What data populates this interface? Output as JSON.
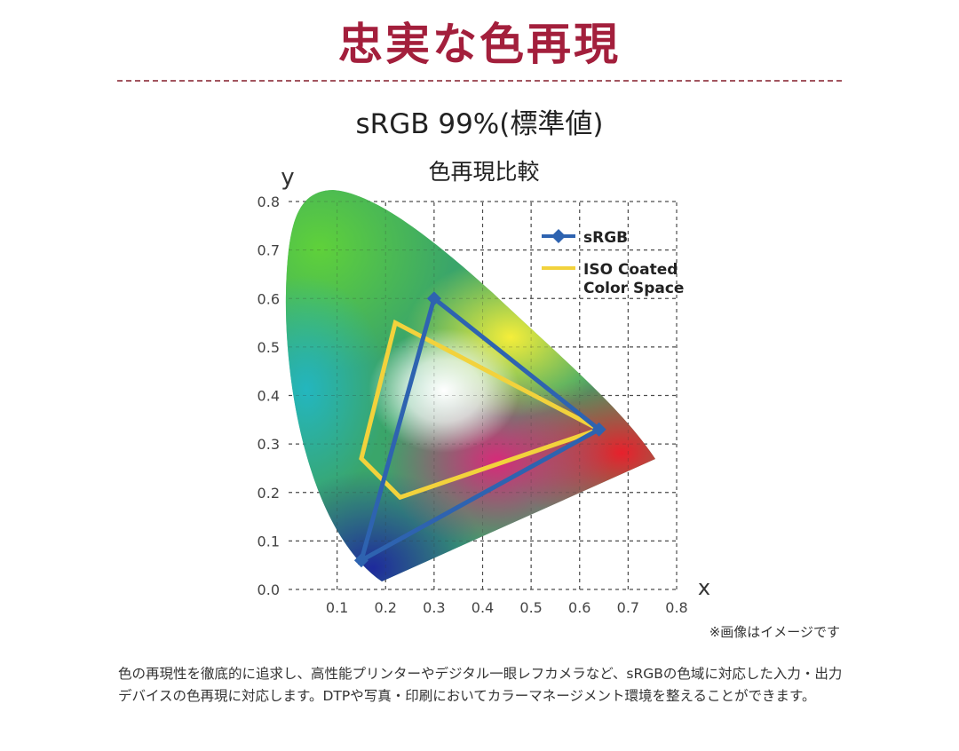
{
  "header": {
    "title": "忠実な色再現",
    "subtitle": "sRGB 99%(標準値)",
    "title_color": "#a31f3c"
  },
  "chart_data": {
    "type": "scatter",
    "title": "色再現比較",
    "xlabel": "x",
    "ylabel": "y",
    "xlim": [
      0,
      0.8
    ],
    "ylim": [
      0,
      0.8
    ],
    "x_ticks": [
      "0.1",
      "0.2",
      "0.3",
      "0.4",
      "0.5",
      "0.6",
      "0.7",
      "0.8"
    ],
    "y_ticks": [
      "0.0",
      "0.1",
      "0.2",
      "0.3",
      "0.4",
      "0.5",
      "0.6",
      "0.7",
      "0.8"
    ],
    "grid": true,
    "legend_position": "top-right",
    "series": [
      {
        "name": "sRGB",
        "color": "#2e63b0",
        "marker": "diamond",
        "points": [
          [
            0.64,
            0.33
          ],
          [
            0.3,
            0.6
          ],
          [
            0.15,
            0.06
          ]
        ]
      },
      {
        "name": "ISO Coated Color Space",
        "color": "#f2d23c",
        "marker": "none",
        "points": [
          [
            0.64,
            0.33
          ],
          [
            0.22,
            0.55
          ],
          [
            0.15,
            0.27
          ],
          [
            0.23,
            0.19
          ]
        ]
      }
    ]
  },
  "footer": {
    "note": "※画像はイメージです",
    "description": "色の再現性を徹底的に追求し、高性能プリンターやデジタル一眼レフカメラなど、sRGBの色域に対応した入力・出力デバイスの色再現に対応します。DTPや写真・印刷においてカラーマネージメント環境を整えることができます。"
  }
}
